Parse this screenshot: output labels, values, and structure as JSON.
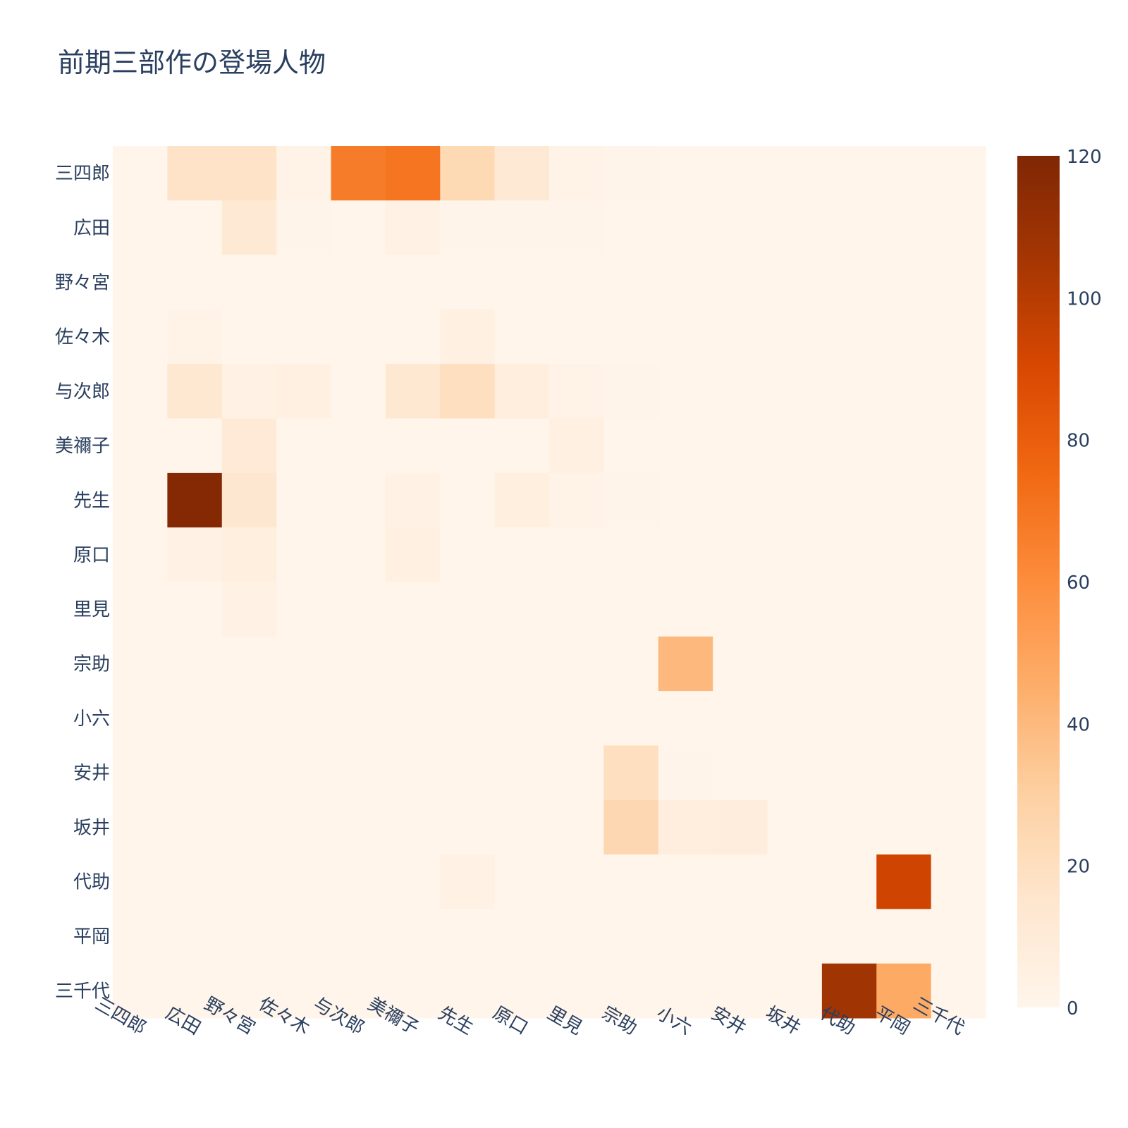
{
  "chart_data": {
    "type": "heatmap",
    "title": "前期三部作の登場人物",
    "xlabel": "",
    "ylabel": "",
    "x_categories": [
      "三四郎",
      "広田",
      "野々宮",
      "佐々木",
      "与次郎",
      "美禰子",
      "先生",
      "原口",
      "里見",
      "宗助",
      "小六",
      "安井",
      "坂井",
      "代助",
      "平岡",
      "三千代"
    ],
    "y_categories": [
      "三四郎",
      "広田",
      "野々宮",
      "佐々木",
      "与次郎",
      "美禰子",
      "先生",
      "原口",
      "里見",
      "宗助",
      "小六",
      "安井",
      "坂井",
      "代助",
      "平岡",
      "三千代"
    ],
    "z": [
      [
        0,
        17,
        17,
        2,
        67,
        70,
        24,
        12,
        2,
        1,
        0,
        0,
        0,
        0,
        0,
        0
      ],
      [
        0,
        0,
        12,
        1,
        0,
        3,
        1,
        1,
        1,
        0,
        0,
        0,
        0,
        0,
        0,
        0
      ],
      [
        0,
        0,
        0,
        0,
        0,
        0,
        0,
        0,
        0,
        0,
        0,
        0,
        0,
        0,
        0,
        0
      ],
      [
        0,
        2,
        0,
        0,
        0,
        0,
        5,
        0,
        0,
        0,
        0,
        0,
        0,
        0,
        0,
        0
      ],
      [
        0,
        13,
        3,
        5,
        0,
        13,
        20,
        7,
        2,
        1,
        0,
        0,
        0,
        0,
        0,
        0
      ],
      [
        0,
        0,
        11,
        0,
        0,
        0,
        0,
        0,
        5,
        0,
        0,
        0,
        0,
        0,
        0,
        0
      ],
      [
        0,
        118,
        14,
        0,
        0,
        4,
        0,
        6,
        2,
        1,
        0,
        0,
        0,
        0,
        0,
        0
      ],
      [
        0,
        3,
        6,
        0,
        0,
        5,
        0,
        0,
        0,
        0,
        0,
        0,
        0,
        0,
        0,
        0
      ],
      [
        0,
        0,
        3,
        0,
        0,
        0,
        0,
        0,
        0,
        0,
        0,
        0,
        0,
        0,
        0,
        0
      ],
      [
        0,
        0,
        0,
        0,
        0,
        0,
        0,
        0,
        0,
        0,
        40,
        0,
        0,
        0,
        0,
        0
      ],
      [
        0,
        0,
        0,
        0,
        0,
        0,
        0,
        0,
        0,
        0,
        0,
        0,
        0,
        0,
        0,
        0
      ],
      [
        0,
        0,
        0,
        0,
        0,
        0,
        0,
        0,
        0,
        20,
        1,
        0,
        0,
        0,
        0,
        0
      ],
      [
        0,
        0,
        0,
        0,
        0,
        0,
        0,
        0,
        0,
        25,
        7,
        8,
        0,
        0,
        0,
        0
      ],
      [
        0,
        0,
        0,
        0,
        0,
        0,
        4,
        0,
        0,
        0,
        0,
        0,
        0,
        0,
        93,
        0
      ],
      [
        0,
        0,
        0,
        0,
        0,
        0,
        0,
        0,
        0,
        0,
        0,
        0,
        0,
        0,
        0,
        0
      ],
      [
        0,
        0,
        0,
        0,
        0,
        0,
        0,
        0,
        0,
        0,
        0,
        0,
        0,
        107,
        47,
        0
      ]
    ],
    "zmin": 0,
    "zmax": 120,
    "colorscale": "Oranges",
    "colorbar_ticks": [
      0,
      20,
      40,
      60,
      80,
      100,
      120
    ],
    "legend": "colorbar-right",
    "grid": false
  }
}
